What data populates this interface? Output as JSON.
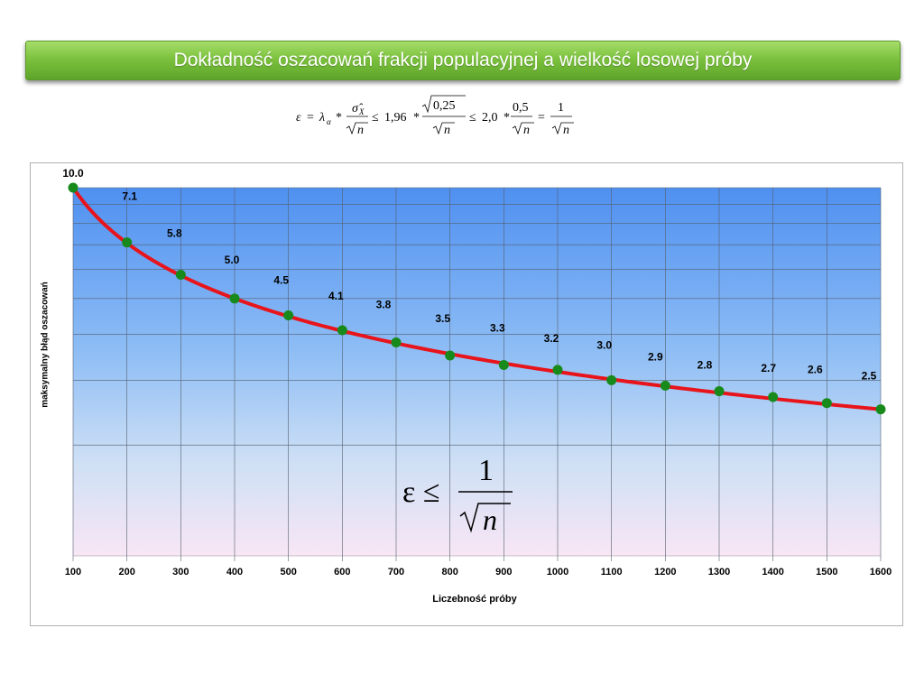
{
  "slide": {
    "title": "Dokładność oszacowań  frakcji populacyjnej a wielkość losowej próby"
  },
  "formula_top": {
    "epsilon": "ε",
    "lambda": "λ",
    "lambda_sub": "α",
    "sigma_hat": "σ̂",
    "sigma_sub": "X",
    "n": "n",
    "const1": "1,96",
    "sqrt_arg": "0,25",
    "const2": "2,0",
    "half": "0,5",
    "one": "1"
  },
  "formula_inset": {
    "lhs": "ε ≤",
    "numerator": "1",
    "denominator": "n"
  },
  "chart_data": {
    "type": "line",
    "title": "",
    "xlabel": "Liczebność próby",
    "ylabel": "maksymalny błąd oszacowań",
    "x": [
      100,
      200,
      300,
      400,
      500,
      600,
      700,
      800,
      900,
      1000,
      1100,
      1200,
      1300,
      1400,
      1500,
      1600
    ],
    "x_ticks": [
      "100",
      "200",
      "300",
      "400",
      "500",
      "600",
      "700",
      "800",
      "900",
      "1000",
      "1100",
      "1200",
      "1300",
      "1400",
      "1500",
      "1600"
    ],
    "series": [
      {
        "values": [
          10.0,
          7.1,
          5.8,
          5.0,
          4.5,
          4.1,
          3.8,
          3.5,
          3.3,
          3.2,
          3.0,
          2.9,
          2.8,
          2.7,
          2.6,
          2.5
        ],
        "labels": [
          "10.0",
          "7.1",
          "5.8",
          "5.0",
          "4.5",
          "4.1",
          "3.8",
          "3.5",
          "3.3",
          "3.2",
          "3.0",
          "2.9",
          "2.8",
          "2.7",
          "2.6",
          "2.5"
        ],
        "line_color": "#e8141b",
        "marker_color": "#178a1b"
      }
    ],
    "xlim": [
      100,
      1600
    ],
    "y_scale": "log",
    "ylim": [
      1,
      10
    ],
    "y_gridlines": [
      1,
      2,
      3,
      4,
      5,
      6,
      7,
      8,
      9,
      10
    ],
    "grid": true,
    "legend": "none",
    "y_tick_labels_visible": false,
    "plot_background": "gradient blue to pink"
  }
}
